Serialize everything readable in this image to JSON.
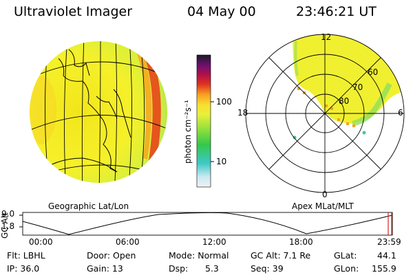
{
  "header": {
    "instrument": "Ultraviolet Imager",
    "date": "04 May 00",
    "time": "23:46:21 UT"
  },
  "colorbar": {
    "unit_label": "photon cm⁻²s⁻¹",
    "ticks": [
      "100",
      "10"
    ]
  },
  "globe_panel": {
    "label": "Geographic Lat/Lon"
  },
  "polar_panel": {
    "label": "Apex MLat/MLT",
    "mlt_labels": [
      "12",
      "18",
      "6",
      "0"
    ],
    "mlat_labels": [
      "60",
      "70",
      "80"
    ]
  },
  "altitude_plot": {
    "axis_label": "GC Alt",
    "y_ticks": [
      "9.0",
      "1.8"
    ],
    "x_ticks": [
      "00:00",
      "06:00",
      "12:00",
      "18:00",
      "23:59"
    ],
    "marker_color": "#e02020"
  },
  "footer": {
    "flt": "Flt: LBHL",
    "ip": "IP: 36.0",
    "door": "Door: Open",
    "gain": "Gain: 13",
    "mode": "Mode: Normal",
    "dsp_label": "Dsp:",
    "dsp_value": "5.3",
    "gc_alt": "GC Alt: 7.1 Re",
    "seq": "Seq: 39",
    "glat_label": "GLat:",
    "glat_value": "44.1",
    "glon_label": "GLon:",
    "glon_value": "155.9"
  }
}
